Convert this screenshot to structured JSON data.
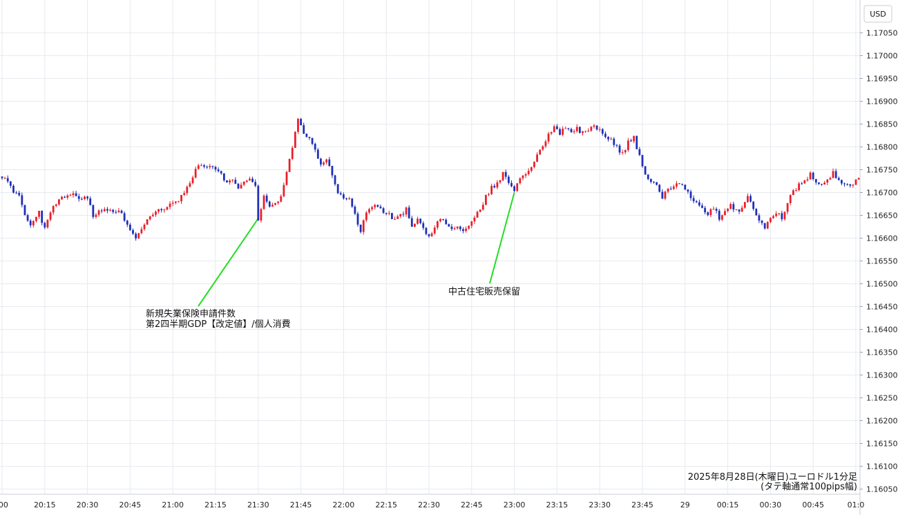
{
  "chart_data": {
    "type": "candlestick",
    "currency": "USD",
    "caption_line1": "2025年8月28日(木曜日)ユーロドル1分足",
    "caption_line2": "(タテ軸通常100pips幅)",
    "ylim": [
      1.1602,
      1.171
    ],
    "y_ticks": [
      "1.17050",
      "1.17000",
      "1.16950",
      "1.16900",
      "1.16850",
      "1.16800",
      "1.16750",
      "1.16700",
      "1.16650",
      "1.16600",
      "1.16550",
      "1.16500",
      "1.16450",
      "1.16400",
      "1.16350",
      "1.16300",
      "1.16250",
      "1.16200",
      "1.16150",
      "1.16100",
      "1.16050"
    ],
    "x_ticks": [
      ":00",
      "20:15",
      "20:30",
      "20:45",
      "21:00",
      "21:15",
      "21:30",
      "21:45",
      "22:00",
      "22:15",
      "22:30",
      "22:45",
      "23:00",
      "23:15",
      "23:30",
      "23:45",
      "29",
      "00:15",
      "00:30",
      "00:45",
      "01:0"
    ],
    "colors": {
      "up": "#e8202a",
      "down": "#1f2fb8",
      "grid": "#e6eaef",
      "annotation_line": "#22dd22"
    },
    "annotations": [
      {
        "lines": [
          "新規失業保険申請件数",
          "第2四半期GDP【改定値】/個人消費"
        ],
        "time": "21:30",
        "price": 1.16643
      },
      {
        "lines": [
          "中古住宅販売保留"
        ],
        "time": "23:00",
        "price": 1.167
      }
    ],
    "price_path": [
      [
        "20:00",
        1.16735
      ],
      [
        "20:03",
        1.16712
      ],
      [
        "20:06",
        1.1669
      ],
      [
        "20:08",
        1.1665
      ],
      [
        "20:10",
        1.16632
      ],
      [
        "20:13",
        1.16655
      ],
      [
        "20:15",
        1.1662
      ],
      [
        "20:17",
        1.1666
      ],
      [
        "20:20",
        1.16685
      ],
      [
        "20:22",
        1.1669
      ],
      [
        "20:25",
        1.16702
      ],
      [
        "20:28",
        1.16683
      ],
      [
        "20:30",
        1.1669
      ],
      [
        "20:32",
        1.1665
      ],
      [
        "20:35",
        1.16662
      ],
      [
        "20:38",
        1.16658
      ],
      [
        "20:41",
        1.1666
      ],
      [
        "20:44",
        1.1663
      ],
      [
        "20:47",
        1.166
      ],
      [
        "20:50",
        1.16625
      ],
      [
        "20:52",
        1.1665
      ],
      [
        "20:55",
        1.1666
      ],
      [
        "20:58",
        1.1667
      ],
      [
        "21:00",
        1.16675
      ],
      [
        "21:03",
        1.1669
      ],
      [
        "21:05",
        1.1671
      ],
      [
        "21:07",
        1.16735
      ],
      [
        "21:09",
        1.16762
      ],
      [
        "21:11",
        1.16755
      ],
      [
        "21:13",
        1.1676
      ],
      [
        "21:15",
        1.16752
      ],
      [
        "21:17",
        1.1674
      ],
      [
        "21:19",
        1.1672
      ],
      [
        "21:21",
        1.1673
      ],
      [
        "21:23",
        1.16708
      ],
      [
        "21:25",
        1.1672
      ],
      [
        "21:27",
        1.16735
      ],
      [
        "21:29",
        1.1671
      ],
      [
        "21:30",
        1.16643
      ],
      [
        "21:32",
        1.1669
      ],
      [
        "21:34",
        1.16668
      ],
      [
        "21:36",
        1.1668
      ],
      [
        "21:38",
        1.1669
      ],
      [
        "21:40",
        1.1675
      ],
      [
        "21:42",
        1.168
      ],
      [
        "21:44",
        1.16862
      ],
      [
        "21:46",
        1.1683
      ],
      [
        "21:48",
        1.1682
      ],
      [
        "21:50",
        1.1679
      ],
      [
        "21:52",
        1.1676
      ],
      [
        "21:54",
        1.16772
      ],
      [
        "21:56",
        1.16735
      ],
      [
        "21:58",
        1.167
      ],
      [
        "22:00",
        1.1669
      ],
      [
        "22:02",
        1.16682
      ],
      [
        "22:04",
        1.16655
      ],
      [
        "22:06",
        1.1661
      ],
      [
        "22:08",
        1.1666
      ],
      [
        "22:10",
        1.1667
      ],
      [
        "22:12",
        1.16668
      ],
      [
        "22:14",
        1.1666
      ],
      [
        "22:16",
        1.1665
      ],
      [
        "22:18",
        1.1664
      ],
      [
        "22:20",
        1.16648
      ],
      [
        "22:22",
        1.16665
      ],
      [
        "22:24",
        1.1663
      ],
      [
        "22:26",
        1.1664
      ],
      [
        "22:28",
        1.1662
      ],
      [
        "22:30",
        1.166
      ],
      [
        "22:32",
        1.16625
      ],
      [
        "22:34",
        1.1664
      ],
      [
        "22:36",
        1.16635
      ],
      [
        "22:38",
        1.1662
      ],
      [
        "22:40",
        1.16628
      ],
      [
        "22:42",
        1.16615
      ],
      [
        "22:44",
        1.16625
      ],
      [
        "22:46",
        1.16645
      ],
      [
        "22:48",
        1.16665
      ],
      [
        "22:50",
        1.1669
      ],
      [
        "22:52",
        1.16712
      ],
      [
        "22:54",
        1.1672
      ],
      [
        "22:56",
        1.1674
      ],
      [
        "22:58",
        1.16722
      ],
      [
        "23:00",
        1.167
      ],
      [
        "23:02",
        1.16735
      ],
      [
        "23:04",
        1.16745
      ],
      [
        "23:06",
        1.1676
      ],
      [
        "23:08",
        1.1678
      ],
      [
        "23:10",
        1.168
      ],
      [
        "23:12",
        1.16825
      ],
      [
        "23:14",
        1.16843
      ],
      [
        "23:16",
        1.1683
      ],
      [
        "23:18",
        1.16842
      ],
      [
        "23:20",
        1.16835
      ],
      [
        "23:22",
        1.1684
      ],
      [
        "23:24",
        1.1683
      ],
      [
        "23:26",
        1.16838
      ],
      [
        "23:28",
        1.16845
      ],
      [
        "23:30",
        1.16835
      ],
      [
        "23:32",
        1.1682
      ],
      [
        "23:34",
        1.16815
      ],
      [
        "23:36",
        1.168
      ],
      [
        "23:38",
        1.16785
      ],
      [
        "23:40",
        1.1681
      ],
      [
        "23:42",
        1.1682
      ],
      [
        "23:44",
        1.1678
      ],
      [
        "23:46",
        1.1674
      ],
      [
        "23:48",
        1.16725
      ],
      [
        "23:50",
        1.16712
      ],
      [
        "23:52",
        1.1669
      ],
      [
        "23:54",
        1.16705
      ],
      [
        "23:56",
        1.16715
      ],
      [
        "23:58",
        1.16722
      ],
      [
        "00:00",
        1.1671
      ],
      [
        "00:02",
        1.1669
      ],
      [
        "00:04",
        1.16675
      ],
      [
        "00:06",
        1.1667
      ],
      [
        "00:08",
        1.1665
      ],
      [
        "00:10",
        1.16668
      ],
      [
        "00:12",
        1.16645
      ],
      [
        "00:14",
        1.1666
      ],
      [
        "00:16",
        1.1667
      ],
      [
        "00:18",
        1.1666
      ],
      [
        "00:20",
        1.16665
      ],
      [
        "00:22",
        1.1669
      ],
      [
        "00:24",
        1.16665
      ],
      [
        "00:26",
        1.1664
      ],
      [
        "00:28",
        1.1662
      ],
      [
        "00:30",
        1.16642
      ],
      [
        "00:32",
        1.16655
      ],
      [
        "00:34",
        1.16645
      ],
      [
        "00:36",
        1.1668
      ],
      [
        "00:38",
        1.167
      ],
      [
        "00:40",
        1.16718
      ],
      [
        "00:42",
        1.16725
      ],
      [
        "00:44",
        1.1674
      ],
      [
        "00:46",
        1.16722
      ],
      [
        "00:48",
        1.16718
      ],
      [
        "00:50",
        1.16725
      ],
      [
        "00:52",
        1.16742
      ],
      [
        "00:54",
        1.16725
      ],
      [
        "00:56",
        1.1672
      ],
      [
        "00:58",
        1.16718
      ],
      [
        "01:00",
        1.16725
      ],
      [
        "01:01",
        1.1673
      ]
    ]
  }
}
